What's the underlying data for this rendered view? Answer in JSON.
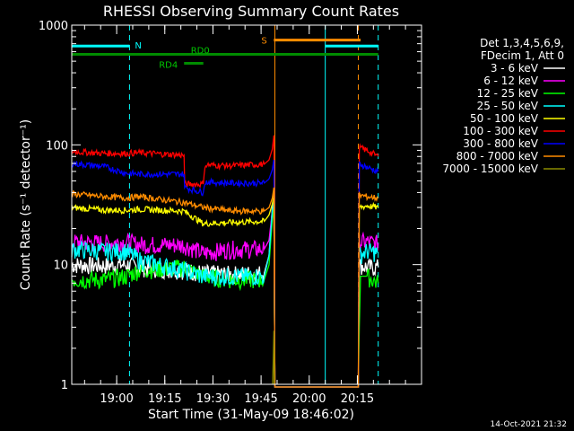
{
  "chart_data": {
    "type": "line",
    "title": "RHESSI Observing Summary Count Rates",
    "xlabel": "Start Time (31-May-09 18:46:02)",
    "ylabel": "Count Rate (s⁻¹ detector⁻¹)",
    "yscale": "log",
    "ylim": [
      1,
      1000
    ],
    "xlim_min": [
      0,
      109
    ],
    "x_unit": "minutes after 18:46:02",
    "x_ticks": [
      {
        "t": 14,
        "label": "19:00"
      },
      {
        "t": 29,
        "label": "19:15"
      },
      {
        "t": 44,
        "label": "19:30"
      },
      {
        "t": 59,
        "label": "19:45"
      },
      {
        "t": 74,
        "label": "20:00"
      },
      {
        "t": 89,
        "label": "20:15"
      }
    ],
    "y_ticks": [
      {
        "v": 1,
        "label": "1"
      },
      {
        "v": 10,
        "label": "10"
      },
      {
        "v": 100,
        "label": "100"
      },
      {
        "v": 1000,
        "label": "1000"
      }
    ],
    "legend_title": [
      "Det 1,3,4,5,6,9,",
      "FDecim 1, Att 0"
    ],
    "legend_position": "right",
    "series": [
      {
        "name": "3 - 6 keV",
        "color": "#ffffff",
        "points": [
          [
            0,
            10
          ],
          [
            10,
            9.8
          ],
          [
            17,
            10
          ],
          [
            21,
            9.5
          ],
          [
            35,
            9
          ],
          [
            41,
            8.5
          ],
          [
            50,
            8.3
          ],
          [
            60,
            8.5
          ],
          [
            61.5,
            12
          ],
          [
            62.5,
            30
          ],
          [
            63,
            38
          ],
          [
            63.3,
            0.9
          ],
          [
            89.3,
            0.9
          ],
          [
            89.6,
            10
          ],
          [
            92,
            9.5
          ],
          [
            95.5,
            9.5
          ]
        ]
      },
      {
        "name": "6 - 12 keV",
        "color": "#ff00ff",
        "points": [
          [
            0,
            15.5
          ],
          [
            10,
            15.2
          ],
          [
            17,
            15.5
          ],
          [
            21,
            14.8
          ],
          [
            35,
            14.6
          ],
          [
            41,
            12.5
          ],
          [
            50,
            13.5
          ],
          [
            60,
            13.5
          ],
          [
            61.5,
            16
          ],
          [
            62.5,
            28
          ],
          [
            63,
            36
          ],
          [
            63.3,
            0.9
          ],
          [
            89.3,
            0.9
          ],
          [
            89.6,
            15.5
          ],
          [
            92,
            15.5
          ],
          [
            95.5,
            15
          ]
        ]
      },
      {
        "name": "12 - 25 keV",
        "color": "#00ff00",
        "points": [
          [
            0,
            7.5
          ],
          [
            10,
            7.5
          ],
          [
            17,
            8
          ],
          [
            21,
            9
          ],
          [
            35,
            9.5
          ],
          [
            41,
            8
          ],
          [
            50,
            7.5
          ],
          [
            60,
            7.5
          ],
          [
            61.5,
            10
          ],
          [
            62.5,
            24
          ],
          [
            63,
            33
          ],
          [
            63.3,
            0.9
          ],
          [
            89.3,
            0.9
          ],
          [
            89.6,
            3
          ],
          [
            90,
            8
          ],
          [
            92,
            8
          ],
          [
            95.5,
            7
          ]
        ]
      },
      {
        "name": "25 - 50 keV",
        "color": "#00ffff",
        "points": [
          [
            0,
            13.5
          ],
          [
            10,
            13
          ],
          [
            17,
            13
          ],
          [
            21,
            11
          ],
          [
            35,
            9
          ],
          [
            41,
            8
          ],
          [
            50,
            8
          ],
          [
            60,
            8
          ],
          [
            61.5,
            12
          ],
          [
            62.5,
            28
          ],
          [
            63,
            35
          ],
          [
            63.3,
            0.9
          ],
          [
            89.3,
            0.9
          ],
          [
            89.6,
            12
          ],
          [
            92,
            13
          ],
          [
            95.5,
            12.5
          ]
        ]
      },
      {
        "name": "50 - 100 keV",
        "color": "#ffff00",
        "points": [
          [
            0,
            30
          ],
          [
            10,
            28.5
          ],
          [
            17,
            28.5
          ],
          [
            21,
            29
          ],
          [
            35,
            28
          ],
          [
            41,
            22
          ],
          [
            50,
            22.5
          ],
          [
            60,
            23
          ],
          [
            61.5,
            26
          ],
          [
            62.5,
            32
          ],
          [
            63,
            38
          ],
          [
            63.3,
            0.9
          ],
          [
            89.3,
            0.9
          ],
          [
            89.6,
            30
          ],
          [
            92,
            31
          ],
          [
            95.5,
            30
          ]
        ]
      },
      {
        "name": "100 - 300 keV",
        "color": "#ff0000",
        "points": [
          [
            0,
            88
          ],
          [
            10,
            85
          ],
          [
            17,
            85
          ],
          [
            21,
            86
          ],
          [
            35,
            82
          ],
          [
            35.2,
            47
          ],
          [
            41,
            47
          ],
          [
            41.5,
            68
          ],
          [
            50,
            67
          ],
          [
            60,
            69
          ],
          [
            61.5,
            75
          ],
          [
            62.5,
            92
          ],
          [
            63,
            120
          ],
          [
            63.3,
            0.9
          ],
          [
            89.3,
            0.9
          ],
          [
            89.6,
            95
          ],
          [
            92,
            90
          ],
          [
            95.5,
            80
          ]
        ]
      },
      {
        "name": "300 - 800 keV",
        "color": "#0000ff",
        "points": [
          [
            0,
            70
          ],
          [
            10,
            66
          ],
          [
            17,
            58
          ],
          [
            21,
            57
          ],
          [
            35,
            57
          ],
          [
            35.2,
            44
          ],
          [
            41,
            40
          ],
          [
            41.5,
            49
          ],
          [
            50,
            48
          ],
          [
            60,
            48
          ],
          [
            61.5,
            52
          ],
          [
            62.5,
            62
          ],
          [
            63,
            75
          ],
          [
            63.3,
            0.9
          ],
          [
            89.3,
            0.9
          ],
          [
            89.6,
            70
          ],
          [
            92,
            65
          ],
          [
            95.5,
            60
          ]
        ]
      },
      {
        "name": "800 - 7000 keV",
        "color": "#ff8c00",
        "points": [
          [
            0,
            39
          ],
          [
            10,
            37
          ],
          [
            17,
            36
          ],
          [
            21,
            37
          ],
          [
            35,
            33
          ],
          [
            41,
            30
          ],
          [
            50,
            28
          ],
          [
            60,
            28
          ],
          [
            61.5,
            30
          ],
          [
            62.5,
            36
          ],
          [
            63,
            44
          ],
          [
            63.3,
            0.9
          ],
          [
            89.3,
            0.9
          ],
          [
            89.6,
            38
          ],
          [
            92,
            37
          ],
          [
            95.5,
            36
          ]
        ]
      },
      {
        "name": "7000 - 15000 keV",
        "color": "#8b8b00",
        "points": [
          [
            62.6,
            1
          ],
          [
            62.8,
            1.6
          ],
          [
            63,
            2.8
          ],
          [
            63.1,
            1
          ]
        ]
      }
    ],
    "flag_bars": [
      {
        "label": "N",
        "color": "#00ffff",
        "start": 0,
        "end": 18,
        "level": 670
      },
      {
        "label": "",
        "color": "#00ffff",
        "start": 79,
        "end": 95.5,
        "level": 670
      },
      {
        "label": "S",
        "color": "#ff8c00",
        "start": 63,
        "end": 90,
        "level": 750
      },
      {
        "label": "",
        "color": "#ff8c00",
        "start": 63,
        "end": 63.2,
        "level": 750
      },
      {
        "label": "",
        "color": "#008c00",
        "start": 0,
        "end": 95.5,
        "level": 570
      },
      {
        "label": "RD0",
        "color": "#008c00",
        "start": 0,
        "end": 0,
        "level": 570
      },
      {
        "label": "RD4",
        "color": "#008c00",
        "start": 35,
        "end": 41,
        "level": 480
      }
    ],
    "vlines": [
      {
        "t": 0,
        "color": "#00ffff",
        "style": "solid"
      },
      {
        "t": 18,
        "color": "#00ffff",
        "style": "dashed"
      },
      {
        "t": 63.3,
        "color": "#ff8c00",
        "style": "solid"
      },
      {
        "t": 79,
        "color": "#00ffff",
        "style": "solid"
      },
      {
        "t": 89.3,
        "color": "#ff8c00",
        "style": "dashed"
      },
      {
        "t": 95.5,
        "color": "#00ffff",
        "style": "dashed"
      }
    ],
    "footer": "14-Oct-2021 21:32"
  }
}
